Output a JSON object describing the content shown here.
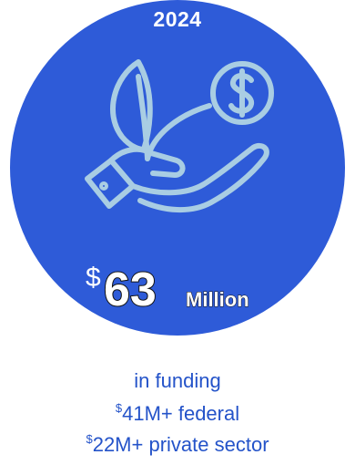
{
  "header": {
    "year": "2024"
  },
  "amount": {
    "currency_symbol": "$",
    "value": "63",
    "unit": "Million"
  },
  "caption": {
    "line1": "in funding",
    "federal_symbol": "$",
    "federal_text": "41M+ federal",
    "private_symbol": "$",
    "private_text": "22M+ private sector"
  },
  "colors": {
    "circle": "#2e5bd8",
    "icon_stroke": "#a9cde3",
    "caption_text": "#2453c9",
    "amount_text": "#ffffff"
  },
  "icon": "hand-plant-coin-icon"
}
